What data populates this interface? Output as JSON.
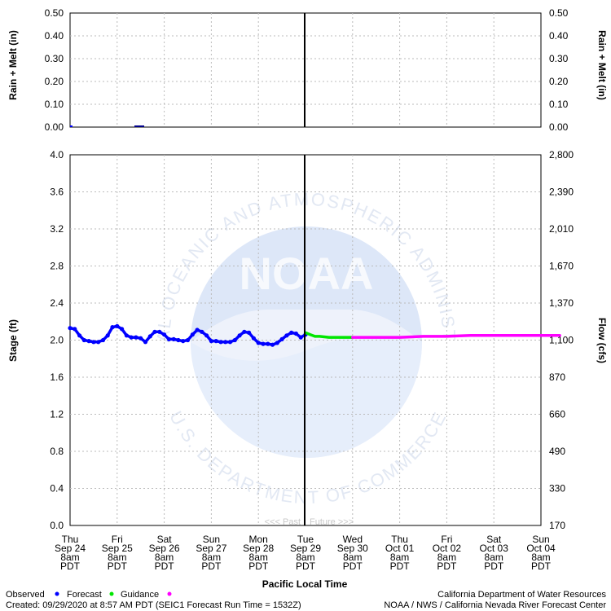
{
  "chart_data": [
    {
      "type": "bar",
      "ylabel_left": "Rain + Melt (in)",
      "ylabel_right": "Rain + Melt (in)",
      "ylim": [
        0,
        0.5
      ],
      "yticks": [
        "0.00",
        "0.10",
        "0.20",
        "0.30",
        "0.40",
        "0.50"
      ],
      "values": [
        0.0,
        0.0
      ]
    },
    {
      "type": "line",
      "ylabel_left": "Stage (ft)",
      "ylabel_right": "Flow (cfs)",
      "ylim": [
        0,
        4.0
      ],
      "yticks_left": [
        "0.0",
        "0.4",
        "0.8",
        "1.2",
        "1.6",
        "2.0",
        "2.4",
        "2.8",
        "3.2",
        "3.6",
        "4.0"
      ],
      "yticks_right": [
        "170",
        "330",
        "490",
        "660",
        "870",
        "1,100",
        "1,370",
        "1,670",
        "2,010",
        "2,390",
        "2,800"
      ],
      "xlabel": "Pacific Local Time",
      "x_ticks": [
        [
          "Thu",
          "Sep 24",
          "8am",
          "PDT"
        ],
        [
          "Fri",
          "Sep 25",
          "8am",
          "PDT"
        ],
        [
          "Sat",
          "Sep 26",
          "8am",
          "PDT"
        ],
        [
          "Sun",
          "Sep 27",
          "8am",
          "PDT"
        ],
        [
          "Mon",
          "Sep 28",
          "8am",
          "PDT"
        ],
        [
          "Tue",
          "Sep 29",
          "8am",
          "PDT"
        ],
        [
          "Wed",
          "Sep 30",
          "8am",
          "PDT"
        ],
        [
          "Thu",
          "Oct 01",
          "8am",
          "PDT"
        ],
        [
          "Fri",
          "Oct 02",
          "8am",
          "PDT"
        ],
        [
          "Sat",
          "Oct 03",
          "8am",
          "PDT"
        ],
        [
          "Sun",
          "Oct 04",
          "8am",
          "PDT"
        ]
      ],
      "now_index": 5,
      "past_label": "<<< Past",
      "future_label": "Future >>>",
      "series": [
        {
          "name": "Observed",
          "color": "#0000ff",
          "x": [
            0.0,
            0.1,
            0.2,
            0.3,
            0.4,
            0.5,
            0.6,
            0.7,
            0.8,
            0.9,
            1.0,
            1.1,
            1.2,
            1.3,
            1.4,
            1.5,
            1.6,
            1.7,
            1.8,
            1.9,
            2.0,
            2.1,
            2.2,
            2.3,
            2.4,
            2.5,
            2.6,
            2.7,
            2.8,
            2.9,
            3.0,
            3.1,
            3.2,
            3.3,
            3.4,
            3.5,
            3.6,
            3.7,
            3.8,
            3.9,
            4.0,
            4.1,
            4.2,
            4.3,
            4.4,
            4.5,
            4.6,
            4.7,
            4.8,
            4.9,
            5.0
          ],
          "y": [
            2.13,
            2.12,
            2.05,
            2.0,
            1.99,
            1.98,
            1.98,
            2.0,
            2.05,
            2.14,
            2.15,
            2.12,
            2.05,
            2.03,
            2.03,
            2.02,
            1.98,
            2.04,
            2.09,
            2.09,
            2.06,
            2.01,
            2.01,
            2.0,
            1.99,
            2.0,
            2.06,
            2.11,
            2.09,
            2.05,
            1.99,
            1.99,
            1.98,
            1.98,
            1.98,
            2.0,
            2.05,
            2.09,
            2.08,
            2.02,
            1.97,
            1.96,
            1.96,
            1.95,
            1.97,
            2.01,
            2.05,
            2.08,
            2.07,
            2.03,
            2.06
          ]
        },
        {
          "name": "Forecast",
          "color": "#00e600",
          "x": [
            5.0,
            5.1,
            5.2,
            5.3,
            5.5,
            5.7,
            5.9,
            6.0
          ],
          "y": [
            2.08,
            2.06,
            2.04,
            2.04,
            2.03,
            2.03,
            2.03,
            2.03
          ]
        },
        {
          "name": "Guidance",
          "color": "#ff00ff",
          "x": [
            6.0,
            6.5,
            7.0,
            7.5,
            8.0,
            8.5,
            9.0,
            9.5,
            10.0,
            10.4
          ],
          "y": [
            2.03,
            2.03,
            2.03,
            2.04,
            2.04,
            2.05,
            2.05,
            2.05,
            2.05,
            2.05
          ]
        }
      ]
    }
  ],
  "legend": {
    "observed": "Observed",
    "forecast": "Forecast",
    "guidance": "Guidance",
    "observed_color": "#0000ff",
    "forecast_color": "#00e600",
    "guidance_color": "#ff00ff"
  },
  "footer": {
    "created": "Created: 09/29/2020 at 8:57 AM PDT   (SEIC1 Forecast Run Time = 1532Z)",
    "agency1": "California Department of Water Resources",
    "agency2": "NOAA / NWS / California Nevada River Forecast Center"
  },
  "watermark": {
    "logo_text": "NOAA",
    "ring_top": "NATIONAL OCEANIC AND ATMOSPHERIC ADMINISTRATION",
    "ring_bottom": "U.S. DEPARTMENT OF COMMERCE"
  }
}
